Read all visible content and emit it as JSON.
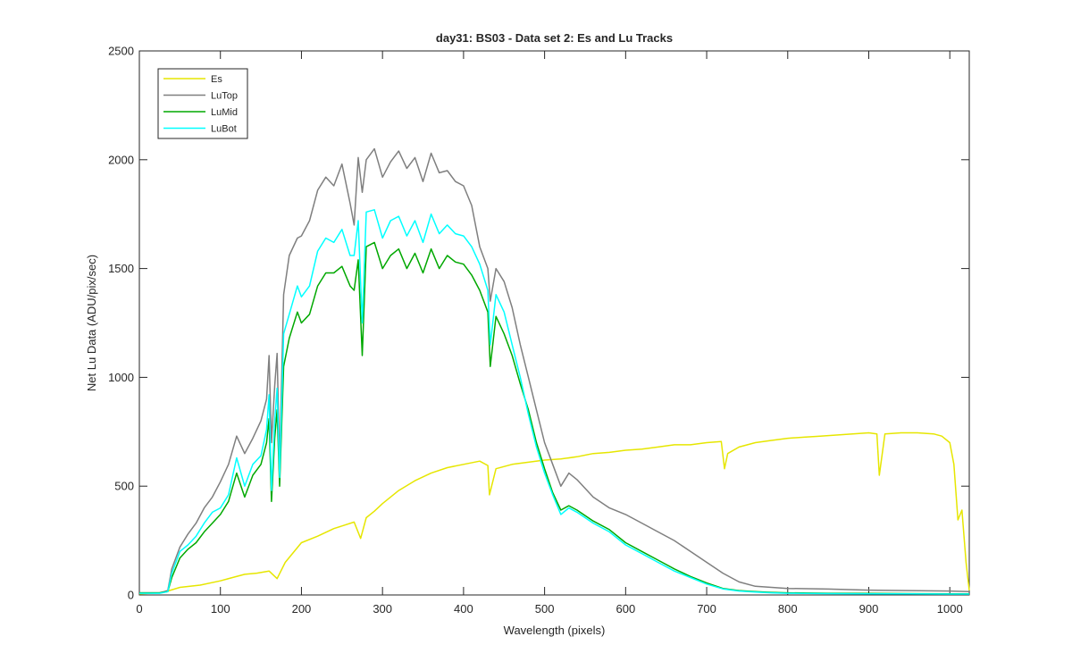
{
  "chart_data": {
    "type": "line",
    "title": "day31: BS03 - Data set 2: Es and Lu Tracks",
    "xlabel": "Wavelength (pixels)",
    "ylabel": "Net Lu Data (ADU/pix/sec)",
    "xlim": [
      0,
      1024
    ],
    "ylim": [
      0,
      2500
    ],
    "xticks": [
      0,
      100,
      200,
      300,
      400,
      500,
      600,
      700,
      800,
      900,
      1000
    ],
    "yticks": [
      0,
      500,
      1000,
      1500,
      2000,
      2500
    ],
    "grid": false,
    "legend_position": "top-left",
    "series": [
      {
        "name": "Es",
        "color": "#e6e600",
        "x": [
          0,
          25,
          35,
          50,
          75,
          100,
          115,
          130,
          145,
          160,
          170,
          180,
          200,
          220,
          240,
          265,
          273,
          280,
          290,
          300,
          320,
          340,
          360,
          380,
          400,
          420,
          430,
          432,
          440,
          460,
          480,
          500,
          520,
          540,
          560,
          580,
          600,
          620,
          640,
          660,
          680,
          700,
          718,
          722,
          726,
          740,
          760,
          780,
          800,
          820,
          840,
          860,
          880,
          900,
          910,
          913,
          920,
          940,
          960,
          980,
          990,
          1000,
          1005,
          1010,
          1015,
          1020,
          1024
        ],
        "values": [
          5,
          10,
          18,
          35,
          45,
          65,
          80,
          95,
          100,
          110,
          75,
          150,
          240,
          270,
          305,
          335,
          260,
          355,
          385,
          420,
          480,
          525,
          560,
          585,
          600,
          615,
          595,
          460,
          580,
          600,
          610,
          620,
          625,
          635,
          650,
          655,
          665,
          670,
          680,
          690,
          690,
          700,
          705,
          580,
          650,
          680,
          700,
          710,
          720,
          725,
          730,
          735,
          740,
          745,
          740,
          550,
          740,
          745,
          745,
          740,
          730,
          700,
          600,
          345,
          390,
          150,
          20
        ]
      },
      {
        "name": "LuTop",
        "color": "#7f7f7f",
        "x": [
          0,
          25,
          35,
          40,
          50,
          60,
          70,
          80,
          90,
          100,
          110,
          120,
          130,
          140,
          150,
          157,
          160,
          163,
          167,
          170,
          173,
          178,
          185,
          195,
          200,
          210,
          220,
          230,
          240,
          250,
          260,
          265,
          270,
          275,
          280,
          290,
          300,
          310,
          320,
          330,
          340,
          350,
          360,
          370,
          380,
          390,
          400,
          410,
          420,
          430,
          433,
          440,
          450,
          460,
          470,
          480,
          490,
          500,
          510,
          520,
          530,
          540,
          560,
          580,
          600,
          620,
          640,
          660,
          680,
          700,
          720,
          740,
          760,
          780,
          800,
          850,
          900,
          950,
          1000,
          1024
        ],
        "values": [
          10,
          10,
          20,
          120,
          220,
          280,
          330,
          400,
          450,
          520,
          600,
          730,
          650,
          720,
          800,
          900,
          1100,
          700,
          960,
          1110,
          600,
          1380,
          1560,
          1640,
          1650,
          1720,
          1860,
          1920,
          1880,
          1980,
          1800,
          1700,
          2010,
          1850,
          2000,
          2050,
          1920,
          1990,
          2040,
          1960,
          2010,
          1900,
          2030,
          1940,
          1950,
          1900,
          1880,
          1790,
          1600,
          1500,
          1350,
          1500,
          1440,
          1320,
          1150,
          1000,
          850,
          700,
          600,
          500,
          560,
          530,
          450,
          400,
          370,
          330,
          290,
          250,
          200,
          150,
          100,
          60,
          40,
          35,
          30,
          27,
          22,
          20,
          18,
          15
        ]
      },
      {
        "name": "LuMid",
        "color": "#00a800",
        "x": [
          0,
          25,
          35,
          40,
          50,
          60,
          70,
          80,
          90,
          100,
          110,
          120,
          130,
          140,
          150,
          157,
          160,
          163,
          167,
          170,
          173,
          178,
          185,
          195,
          200,
          210,
          220,
          230,
          240,
          250,
          260,
          265,
          270,
          275,
          280,
          290,
          300,
          310,
          320,
          330,
          340,
          350,
          360,
          370,
          380,
          390,
          400,
          410,
          420,
          430,
          433,
          440,
          450,
          460,
          470,
          480,
          490,
          500,
          510,
          520,
          530,
          540,
          560,
          580,
          600,
          620,
          640,
          660,
          680,
          700,
          720,
          740,
          760,
          780,
          800,
          850,
          900,
          950,
          1000,
          1024
        ],
        "values": [
          10,
          10,
          15,
          80,
          170,
          210,
          240,
          290,
          330,
          370,
          430,
          560,
          450,
          550,
          600,
          700,
          810,
          430,
          720,
          850,
          500,
          1050,
          1180,
          1300,
          1250,
          1290,
          1420,
          1480,
          1480,
          1510,
          1420,
          1400,
          1540,
          1100,
          1600,
          1620,
          1500,
          1560,
          1590,
          1500,
          1570,
          1480,
          1590,
          1500,
          1560,
          1530,
          1520,
          1470,
          1400,
          1300,
          1050,
          1280,
          1200,
          1100,
          970,
          850,
          700,
          580,
          470,
          390,
          410,
          390,
          340,
          300,
          240,
          200,
          160,
          120,
          85,
          55,
          30,
          20,
          15,
          12,
          10,
          8,
          7,
          6,
          5,
          5
        ]
      },
      {
        "name": "LuBot",
        "color": "#00ffff",
        "x": [
          0,
          25,
          35,
          40,
          50,
          60,
          70,
          80,
          90,
          100,
          110,
          120,
          130,
          140,
          150,
          157,
          160,
          163,
          167,
          170,
          173,
          178,
          185,
          195,
          200,
          210,
          220,
          230,
          240,
          250,
          260,
          265,
          270,
          275,
          280,
          290,
          300,
          310,
          320,
          330,
          340,
          350,
          360,
          370,
          380,
          390,
          400,
          410,
          420,
          430,
          433,
          440,
          450,
          460,
          470,
          480,
          490,
          500,
          510,
          520,
          530,
          540,
          560,
          580,
          600,
          620,
          640,
          660,
          680,
          700,
          720,
          740,
          760,
          780,
          800,
          850,
          900,
          950,
          1000,
          1024
        ],
        "values": [
          8,
          8,
          15,
          100,
          200,
          230,
          270,
          330,
          380,
          400,
          460,
          630,
          500,
          600,
          640,
          760,
          920,
          480,
          800,
          950,
          540,
          1200,
          1290,
          1420,
          1370,
          1420,
          1580,
          1640,
          1620,
          1680,
          1560,
          1560,
          1720,
          1250,
          1760,
          1770,
          1640,
          1720,
          1740,
          1650,
          1720,
          1620,
          1750,
          1660,
          1700,
          1660,
          1650,
          1600,
          1520,
          1400,
          1150,
          1380,
          1300,
          1150,
          1000,
          830,
          680,
          560,
          460,
          370,
          400,
          380,
          330,
          290,
          230,
          190,
          150,
          110,
          80,
          50,
          28,
          18,
          13,
          10,
          8,
          6,
          5,
          5,
          4,
          4
        ]
      }
    ]
  }
}
